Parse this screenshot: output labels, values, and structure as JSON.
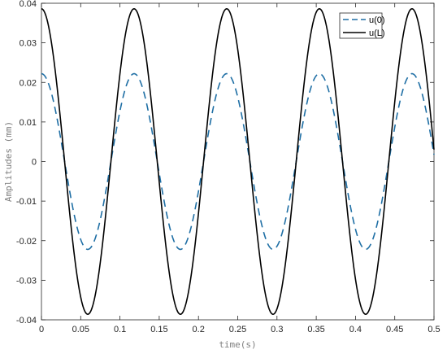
{
  "chart_data": {
    "type": "line",
    "title": "",
    "xlabel": "time(s)",
    "ylabel": "Amplitudes (mm)",
    "xlim": [
      0,
      0.5
    ],
    "ylim": [
      -0.04,
      0.04
    ],
    "x_ticks": [
      "0",
      "0.05",
      "0.1",
      "0.15",
      "0.2",
      "0.25",
      "0.3",
      "0.35",
      "0.4",
      "0.45",
      "0.5"
    ],
    "y_ticks": [
      "-0.04",
      "-0.03",
      "-0.02",
      "-0.01",
      "0",
      "0.01",
      "0.02",
      "0.03",
      "0.04"
    ],
    "grid": false,
    "legend_position": "top-right",
    "series": [
      {
        "name": "u(0)",
        "style": "dashed",
        "color": "#1f6fa5",
        "amplitude": 0.0222,
        "frequency_hz": 8.475,
        "phase_at_zero": "maximum",
        "peaks": [
          [
            0.0,
            0.022
          ],
          [
            0.118,
            0.022
          ],
          [
            0.236,
            0.022
          ],
          [
            0.354,
            0.022
          ],
          [
            0.472,
            0.022
          ]
        ],
        "troughs": [
          [
            0.059,
            -0.022
          ],
          [
            0.177,
            -0.022
          ],
          [
            0.295,
            -0.022
          ],
          [
            0.413,
            -0.022
          ]
        ]
      },
      {
        "name": "u(L)",
        "style": "solid",
        "color": "#000000",
        "amplitude": 0.0386,
        "frequency_hz": 8.475,
        "phase_at_zero": "maximum",
        "peaks": [
          [
            0.0,
            0.0386
          ],
          [
            0.118,
            0.0386
          ],
          [
            0.236,
            0.0386
          ],
          [
            0.354,
            0.0386
          ],
          [
            0.472,
            0.0386
          ]
        ],
        "troughs": [
          [
            0.059,
            -0.0386
          ],
          [
            0.177,
            -0.0386
          ],
          [
            0.295,
            -0.0386
          ],
          [
            0.413,
            -0.0386
          ]
        ]
      }
    ]
  }
}
